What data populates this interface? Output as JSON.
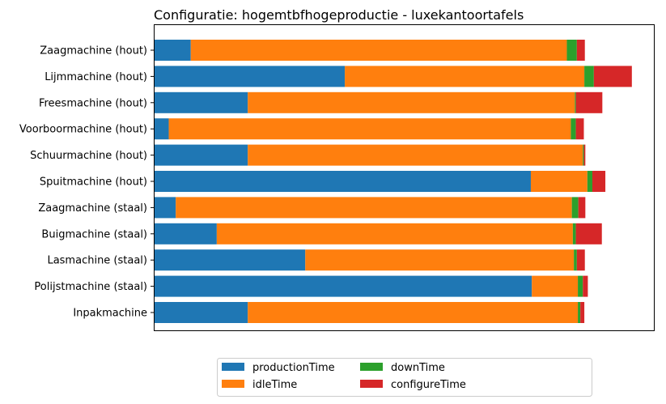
{
  "chart_data": {
    "type": "bar",
    "orientation": "horizontal",
    "stacked": true,
    "title": "Configuratie: hogemtbfhogeproductie - luxekantoortafels",
    "xlabel": "",
    "ylabel": "",
    "x_axis_visible": false,
    "xlim": [
      0,
      100
    ],
    "categories": [
      "Zaagmachine (hout)",
      "Lijmmachine (hout)",
      "Freesmachine (hout)",
      "Voorboormachine (hout)",
      "Schuurmachine (hout)",
      "Spuitmachine (hout)",
      "Zaagmachine (staal)",
      "Buigmachine (staal)",
      "Lasmachine (staal)",
      "Polijstmachine (staal)",
      "Inpakmachine"
    ],
    "series": [
      {
        "name": "productionTime",
        "color": "#1f77b4",
        "values": [
          7.4,
          38.2,
          18.8,
          3.0,
          18.8,
          75.4,
          4.4,
          12.6,
          30.3,
          75.6,
          18.8
        ]
      },
      {
        "name": "idleTime",
        "color": "#ff7f0e",
        "values": [
          75.2,
          47.9,
          65.4,
          80.4,
          67.0,
          11.3,
          79.2,
          71.2,
          53.7,
          9.2,
          66.0
        ]
      },
      {
        "name": "downTime",
        "color": "#2ca02c",
        "values": [
          2.0,
          1.9,
          0.2,
          1.0,
          0.2,
          1.0,
          1.3,
          0.6,
          0.6,
          1.0,
          0.5
        ]
      },
      {
        "name": "configureTime",
        "color": "#d62728",
        "values": [
          1.6,
          7.6,
          5.3,
          1.6,
          0.3,
          2.6,
          1.4,
          5.2,
          1.6,
          1.0,
          0.8
        ]
      }
    ],
    "legend": {
      "position": "bottom-center",
      "columns": 3
    }
  }
}
